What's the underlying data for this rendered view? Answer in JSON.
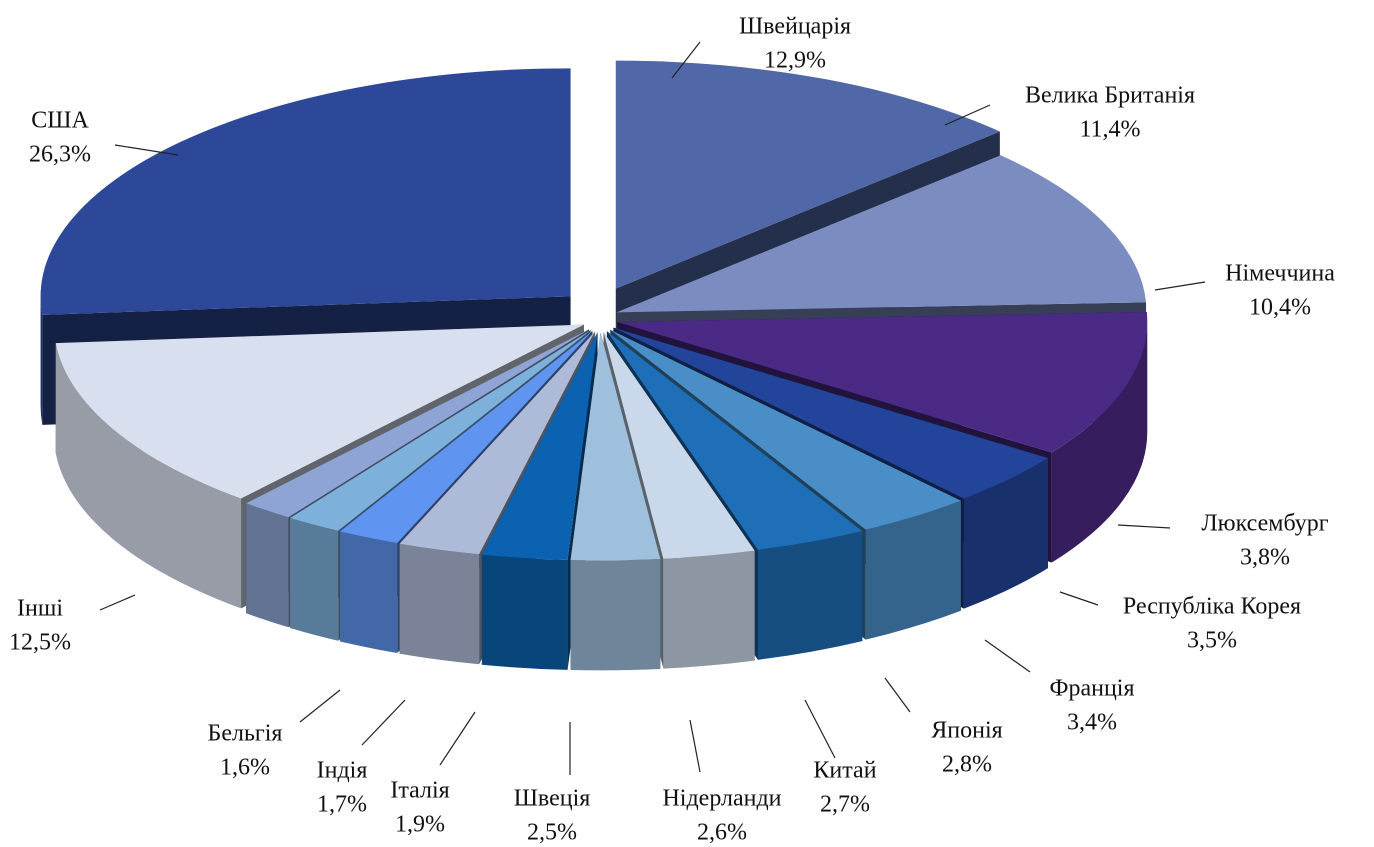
{
  "chart_data": {
    "type": "pie3d",
    "categories": [
      "Швейцарія",
      "Велика Британія",
      "Німеччина",
      "Люксембург",
      "Республіка Корея",
      "Франція",
      "Японія",
      "Китай",
      "Нідерланди",
      "Швеція",
      "Італія",
      "Індія",
      "Бельгія",
      "Інші",
      "США"
    ],
    "values": [
      12.9,
      11.4,
      10.4,
      3.8,
      3.5,
      3.4,
      2.8,
      2.7,
      2.6,
      2.5,
      1.9,
      1.7,
      1.6,
      12.5,
      26.3
    ],
    "value_labels": [
      "12,9%",
      "11,4%",
      "10,4%",
      "3,8%",
      "3,5%",
      "3,4%",
      "2,8%",
      "2,7%",
      "2,6%",
      "2,5%",
      "1,9%",
      "1,7%",
      "1,6%",
      "12,5%",
      "26,3%"
    ],
    "colors": [
      "#5068a8",
      "#7b8cc0",
      "#4b2a86",
      "#22449a",
      "#4a8ec8",
      "#1f6fb8",
      "#c9d8ea",
      "#9ec0dc",
      "#0a62b0",
      "#aebbd8",
      "#5f95f0",
      "#7eb0dc",
      "#8ea4d4",
      "#d8dfee",
      "#2d4898"
    ]
  }
}
